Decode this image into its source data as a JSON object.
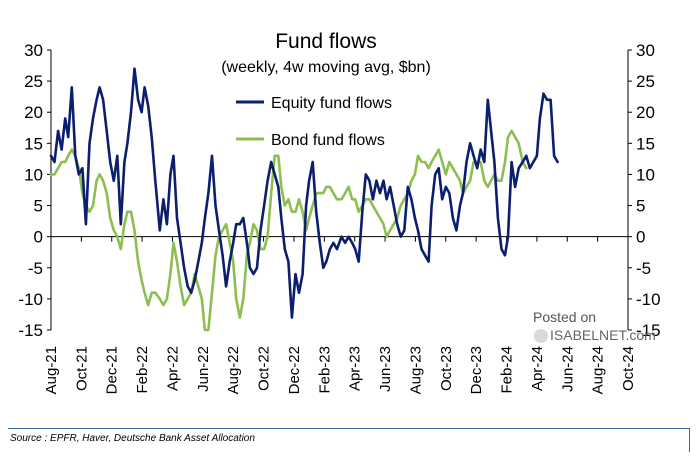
{
  "chart_data": {
    "type": "line",
    "title": "Fund flows",
    "subtitle": "(weekly, 4w moving avg, $bn)",
    "ylim": [
      -15,
      30
    ],
    "y_ticks": [
      30,
      25,
      20,
      15,
      10,
      5,
      0,
      -5,
      -10,
      -15
    ],
    "y_axis_sides": "left-and-right",
    "x_tick_labels": [
      "Aug-21",
      "Oct-21",
      "Dec-21",
      "Feb-22",
      "Apr-22",
      "Jun-22",
      "Aug-22",
      "Oct-22",
      "Dec-22",
      "Feb-23",
      "Apr-23",
      "Jun-23",
      "Aug-23",
      "Oct-23",
      "Dec-23",
      "Feb-24",
      "Apr-24",
      "Jun-24",
      "Aug-24",
      "Oct-24"
    ],
    "legend_placement": "top-center",
    "grid": false,
    "series": [
      {
        "name": "Equity fund flows",
        "color": "#0b1f6e",
        "points": [
          [
            "2021-08-01",
            13
          ],
          [
            "2021-08-08",
            12
          ],
          [
            "2021-08-15",
            17
          ],
          [
            "2021-08-22",
            14
          ],
          [
            "2021-08-29",
            19
          ],
          [
            "2021-09-05",
            16
          ],
          [
            "2021-09-12",
            24
          ],
          [
            "2021-09-19",
            13
          ],
          [
            "2021-09-26",
            10
          ],
          [
            "2021-10-03",
            11
          ],
          [
            "2021-10-10",
            2
          ],
          [
            "2021-10-17",
            15
          ],
          [
            "2021-10-24",
            19
          ],
          [
            "2021-10-31",
            22
          ],
          [
            "2021-11-07",
            24
          ],
          [
            "2021-11-14",
            22
          ],
          [
            "2021-11-21",
            17
          ],
          [
            "2021-11-28",
            12
          ],
          [
            "2021-12-05",
            9
          ],
          [
            "2021-12-12",
            13
          ],
          [
            "2021-12-19",
            2
          ],
          [
            "2021-12-26",
            12
          ],
          [
            "2022-01-02",
            15
          ],
          [
            "2022-01-09",
            20
          ],
          [
            "2022-01-16",
            27
          ],
          [
            "2022-01-23",
            22
          ],
          [
            "2022-01-30",
            20
          ],
          [
            "2022-02-06",
            24
          ],
          [
            "2022-02-13",
            21
          ],
          [
            "2022-02-20",
            16
          ],
          [
            "2022-02-27",
            9
          ],
          [
            "2022-03-06",
            1
          ],
          [
            "2022-03-13",
            6
          ],
          [
            "2022-03-20",
            2
          ],
          [
            "2022-03-27",
            10
          ],
          [
            "2022-04-03",
            13
          ],
          [
            "2022-04-10",
            3
          ],
          [
            "2022-04-17",
            -1
          ],
          [
            "2022-04-24",
            -5
          ],
          [
            "2022-05-01",
            -8
          ],
          [
            "2022-05-08",
            -9
          ],
          [
            "2022-05-15",
            -7
          ],
          [
            "2022-05-22",
            -4
          ],
          [
            "2022-05-29",
            -1
          ],
          [
            "2022-06-05",
            3
          ],
          [
            "2022-06-12",
            7
          ],
          [
            "2022-06-19",
            13
          ],
          [
            "2022-06-26",
            5
          ],
          [
            "2022-07-03",
            1
          ],
          [
            "2022-07-10",
            -3
          ],
          [
            "2022-07-17",
            -8
          ],
          [
            "2022-07-24",
            -4
          ],
          [
            "2022-07-31",
            -1
          ],
          [
            "2022-08-07",
            2
          ],
          [
            "2022-08-14",
            2
          ],
          [
            "2022-08-21",
            3
          ],
          [
            "2022-08-28",
            -1
          ],
          [
            "2022-09-04",
            -5
          ],
          [
            "2022-09-11",
            -6
          ],
          [
            "2022-09-18",
            -5
          ],
          [
            "2022-09-25",
            1
          ],
          [
            "2022-10-02",
            5
          ],
          [
            "2022-10-09",
            9
          ],
          [
            "2022-10-16",
            12
          ],
          [
            "2022-10-23",
            10
          ],
          [
            "2022-10-30",
            8
          ],
          [
            "2022-11-06",
            3
          ],
          [
            "2022-11-13",
            -2
          ],
          [
            "2022-11-20",
            -4
          ],
          [
            "2022-11-27",
            -13
          ],
          [
            "2022-12-04",
            -6
          ],
          [
            "2022-12-11",
            -9
          ],
          [
            "2022-12-18",
            -6
          ],
          [
            "2022-12-25",
            5
          ],
          [
            "2023-01-01",
            9
          ],
          [
            "2023-01-08",
            12
          ],
          [
            "2023-01-15",
            4
          ],
          [
            "2023-01-22",
            -1
          ],
          [
            "2023-01-29",
            -5
          ],
          [
            "2023-02-05",
            -4
          ],
          [
            "2023-02-12",
            -2
          ],
          [
            "2023-02-19",
            -1
          ],
          [
            "2023-02-26",
            -2
          ],
          [
            "2023-03-05",
            0
          ],
          [
            "2023-03-12",
            -1
          ],
          [
            "2023-03-19",
            0
          ],
          [
            "2023-03-26",
            -1
          ],
          [
            "2023-04-02",
            -2
          ],
          [
            "2023-04-09",
            -4
          ],
          [
            "2023-04-16",
            4
          ],
          [
            "2023-04-23",
            10
          ],
          [
            "2023-04-30",
            9
          ],
          [
            "2023-05-07",
            6
          ],
          [
            "2023-05-14",
            9
          ],
          [
            "2023-05-21",
            7
          ],
          [
            "2023-05-28",
            9
          ],
          [
            "2023-06-04",
            6
          ],
          [
            "2023-06-11",
            8
          ],
          [
            "2023-06-18",
            5
          ],
          [
            "2023-06-25",
            2
          ],
          [
            "2023-07-02",
            0
          ],
          [
            "2023-07-09",
            1
          ],
          [
            "2023-07-16",
            8
          ],
          [
            "2023-07-23",
            6
          ],
          [
            "2023-07-30",
            3
          ],
          [
            "2023-08-06",
            1
          ],
          [
            "2023-08-13",
            -2
          ],
          [
            "2023-08-20",
            -3
          ],
          [
            "2023-08-27",
            -4
          ],
          [
            "2023-09-03",
            5
          ],
          [
            "2023-09-10",
            10
          ],
          [
            "2023-09-17",
            11
          ],
          [
            "2023-09-24",
            6
          ],
          [
            "2023-10-01",
            8
          ],
          [
            "2023-10-08",
            7
          ],
          [
            "2023-10-15",
            3
          ],
          [
            "2023-10-22",
            1
          ],
          [
            "2023-10-29",
            5
          ],
          [
            "2023-11-05",
            7
          ],
          [
            "2023-11-12",
            12
          ],
          [
            "2023-11-19",
            15
          ],
          [
            "2023-11-26",
            13
          ],
          [
            "2023-12-03",
            11
          ],
          [
            "2023-12-10",
            14
          ],
          [
            "2023-12-17",
            12
          ],
          [
            "2023-12-24",
            22
          ],
          [
            "2024-01-07",
            12
          ],
          [
            "2024-01-14",
            3
          ],
          [
            "2024-01-21",
            -2
          ],
          [
            "2024-01-28",
            -3
          ],
          [
            "2024-02-04",
            0
          ],
          [
            "2024-02-11",
            12
          ],
          [
            "2024-02-18",
            8
          ],
          [
            "2024-02-25",
            11
          ],
          [
            "2024-03-03",
            12
          ],
          [
            "2024-03-10",
            13
          ],
          [
            "2024-03-17",
            11
          ],
          [
            "2024-03-24",
            12
          ],
          [
            "2024-03-31",
            13
          ],
          [
            "2024-04-07",
            19
          ],
          [
            "2024-04-14",
            23
          ],
          [
            "2024-04-21",
            22
          ],
          [
            "2024-04-28",
            22
          ],
          [
            "2024-05-05",
            13
          ],
          [
            "2024-05-12",
            12
          ]
        ]
      },
      {
        "name": "Bond fund flows",
        "color": "#8cbf50",
        "points": [
          [
            "2021-08-01",
            10
          ],
          [
            "2021-08-08",
            10
          ],
          [
            "2021-08-15",
            11
          ],
          [
            "2021-08-22",
            12
          ],
          [
            "2021-08-29",
            12
          ],
          [
            "2021-09-05",
            13
          ],
          [
            "2021-09-12",
            14
          ],
          [
            "2021-09-19",
            13
          ],
          [
            "2021-09-26",
            11
          ],
          [
            "2021-10-03",
            7
          ],
          [
            "2021-10-10",
            5
          ],
          [
            "2021-10-17",
            4
          ],
          [
            "2021-10-24",
            5
          ],
          [
            "2021-10-31",
            9
          ],
          [
            "2021-11-07",
            10
          ],
          [
            "2021-11-14",
            9
          ],
          [
            "2021-11-21",
            7
          ],
          [
            "2021-11-28",
            3
          ],
          [
            "2021-12-05",
            1
          ],
          [
            "2021-12-12",
            0
          ],
          [
            "2021-12-19",
            -2
          ],
          [
            "2021-12-26",
            2
          ],
          [
            "2022-01-02",
            4
          ],
          [
            "2022-01-09",
            4
          ],
          [
            "2022-01-16",
            1
          ],
          [
            "2022-01-23",
            -4
          ],
          [
            "2022-01-30",
            -7
          ],
          [
            "2022-02-06",
            -9
          ],
          [
            "2022-02-13",
            -11
          ],
          [
            "2022-02-20",
            -9
          ],
          [
            "2022-02-27",
            -9
          ],
          [
            "2022-03-06",
            -10
          ],
          [
            "2022-03-13",
            -11
          ],
          [
            "2022-03-20",
            -10
          ],
          [
            "2022-03-27",
            -6
          ],
          [
            "2022-04-03",
            -1
          ],
          [
            "2022-04-10",
            -4
          ],
          [
            "2022-04-17",
            -8
          ],
          [
            "2022-04-24",
            -11
          ],
          [
            "2022-05-01",
            -10
          ],
          [
            "2022-05-08",
            -9
          ],
          [
            "2022-05-15",
            -6
          ],
          [
            "2022-05-22",
            -8
          ],
          [
            "2022-05-29",
            -10
          ],
          [
            "2022-06-05",
            -15
          ],
          [
            "2022-06-12",
            -15
          ],
          [
            "2022-06-19",
            -9
          ],
          [
            "2022-06-26",
            -3
          ],
          [
            "2022-07-03",
            0
          ],
          [
            "2022-07-10",
            1
          ],
          [
            "2022-07-17",
            2
          ],
          [
            "2022-07-24",
            -1
          ],
          [
            "2022-07-31",
            -4
          ],
          [
            "2022-08-07",
            -10
          ],
          [
            "2022-08-14",
            -13
          ],
          [
            "2022-08-21",
            -10
          ],
          [
            "2022-08-28",
            -3
          ],
          [
            "2022-09-04",
            -1
          ],
          [
            "2022-09-11",
            2
          ],
          [
            "2022-09-18",
            1
          ],
          [
            "2022-09-25",
            -2
          ],
          [
            "2022-10-02",
            -2
          ],
          [
            "2022-10-09",
            0
          ],
          [
            "2022-10-16",
            7
          ],
          [
            "2022-10-23",
            13
          ],
          [
            "2022-10-30",
            13
          ],
          [
            "2022-11-06",
            8
          ],
          [
            "2022-11-13",
            5
          ],
          [
            "2022-11-20",
            6
          ],
          [
            "2022-11-27",
            4
          ],
          [
            "2022-12-04",
            4
          ],
          [
            "2022-12-11",
            6
          ],
          [
            "2022-12-18",
            4
          ],
          [
            "2022-12-25",
            1
          ],
          [
            "2023-01-01",
            3
          ],
          [
            "2023-01-08",
            5
          ],
          [
            "2023-01-15",
            7
          ],
          [
            "2023-01-22",
            7
          ],
          [
            "2023-01-29",
            7
          ],
          [
            "2023-02-05",
            8
          ],
          [
            "2023-02-12",
            8
          ],
          [
            "2023-02-19",
            7
          ],
          [
            "2023-02-26",
            6
          ],
          [
            "2023-03-05",
            6
          ],
          [
            "2023-03-12",
            7
          ],
          [
            "2023-03-19",
            8
          ],
          [
            "2023-03-26",
            6
          ],
          [
            "2023-04-02",
            6
          ],
          [
            "2023-04-09",
            4
          ],
          [
            "2023-04-16",
            5
          ],
          [
            "2023-04-23",
            6
          ],
          [
            "2023-04-30",
            6
          ],
          [
            "2023-05-07",
            5
          ],
          [
            "2023-05-14",
            4
          ],
          [
            "2023-05-21",
            3
          ],
          [
            "2023-05-28",
            2
          ],
          [
            "2023-06-04",
            0
          ],
          [
            "2023-06-11",
            1
          ],
          [
            "2023-06-18",
            2
          ],
          [
            "2023-06-25",
            3
          ],
          [
            "2023-07-02",
            5
          ],
          [
            "2023-07-09",
            6
          ],
          [
            "2023-07-16",
            7
          ],
          [
            "2023-07-23",
            9
          ],
          [
            "2023-07-30",
            10
          ],
          [
            "2023-08-06",
            13
          ],
          [
            "2023-08-13",
            12
          ],
          [
            "2023-08-20",
            12
          ],
          [
            "2023-08-27",
            11
          ],
          [
            "2023-09-03",
            12
          ],
          [
            "2023-09-10",
            13
          ],
          [
            "2023-09-17",
            14
          ],
          [
            "2023-09-24",
            12
          ],
          [
            "2023-10-01",
            10
          ],
          [
            "2023-10-08",
            12
          ],
          [
            "2023-10-15",
            11
          ],
          [
            "2023-10-22",
            10
          ],
          [
            "2023-10-29",
            9
          ],
          [
            "2023-11-05",
            7
          ],
          [
            "2023-11-12",
            8
          ],
          [
            "2023-11-19",
            9
          ],
          [
            "2023-11-26",
            12
          ],
          [
            "2023-12-03",
            12
          ],
          [
            "2023-12-10",
            12
          ],
          [
            "2023-12-17",
            9
          ],
          [
            "2023-12-24",
            8
          ],
          [
            "2024-01-07",
            10
          ],
          [
            "2024-01-14",
            9
          ],
          [
            "2024-01-21",
            9
          ],
          [
            "2024-01-28",
            12
          ],
          [
            "2024-02-04",
            16
          ],
          [
            "2024-02-11",
            17
          ],
          [
            "2024-02-18",
            16
          ],
          [
            "2024-02-25",
            15
          ],
          [
            "2024-03-03",
            12
          ],
          [
            "2024-03-10",
            11
          ]
        ]
      }
    ],
    "source": "Source : EPFR, Haver, Deutsche Bank Asset Allocation"
  },
  "watermark": {
    "line1": "Posted on",
    "line2": "ISABELNET.com"
  }
}
